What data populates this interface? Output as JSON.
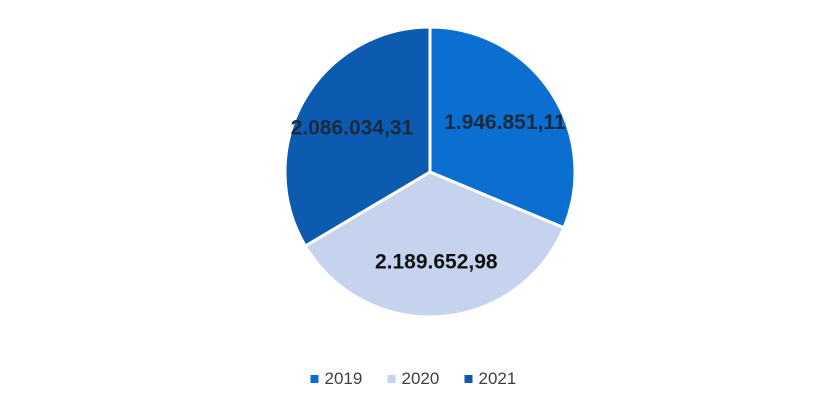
{
  "chart_data": {
    "type": "pie",
    "title": "",
    "categories": [
      "2019",
      "2020",
      "2021"
    ],
    "values": [
      1946851.11,
      2189652.98,
      2086034.31
    ],
    "data_labels": [
      "1.946.851,11",
      "2.189.652,98",
      "2.086.034,31"
    ],
    "colors": [
      "#0a6fd0",
      "#c5d3ef",
      "#0d5bb0"
    ],
    "label_colors": [
      "#1a2a40",
      "#111111",
      "#1a2a40"
    ],
    "legend": {
      "position": "bottom",
      "entries": [
        "2019",
        "2020",
        "2021"
      ]
    }
  }
}
